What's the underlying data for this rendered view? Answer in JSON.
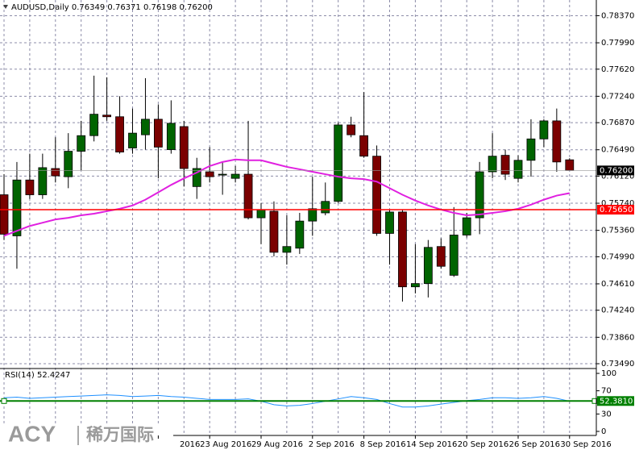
{
  "chart_data": [
    {
      "type": "candlestick",
      "title": "AUDUSD,Daily  0.76349 0.76371 0.76198 0.76200",
      "categories": [
        null,
        null,
        null,
        null,
        null,
        null,
        null,
        null,
        null,
        null,
        null,
        null,
        "2016",
        null,
        null,
        null,
        "23 Aug 2016",
        null,
        null,
        null,
        "29 Aug 2016",
        null,
        null,
        null,
        "2 Sep 2016",
        null,
        null,
        null,
        "8 Sep 2016",
        null,
        null,
        null,
        "14 Sep 2016",
        null,
        null,
        null,
        "20 Sep 2016",
        null,
        null,
        null,
        "26 Sep 2016",
        null,
        null,
        null,
        "30 Sep 2016"
      ],
      "open": [
        0.75859,
        0.75283,
        0.76066,
        0.75859,
        0.76227,
        0.76112,
        0.76469,
        0.76688,
        0.76976,
        0.76953,
        0.76515,
        0.767,
        0.76918,
        0.76492,
        0.76815,
        0.75974,
        0.76181,
        0.76135,
        0.76089,
        0.76147,
        0.75536,
        0.75628,
        0.75052,
        0.7511,
        0.7549,
        0.75605,
        0.75766,
        0.76838,
        0.76688,
        0.764,
        0.75317,
        0.75617,
        0.74568,
        0.74614,
        0.75133,
        0.7473,
        0.75294,
        0.75536,
        0.76181,
        0.76412,
        0.76089,
        0.76342,
        0.76642,
        0.76895,
        0.76349
      ],
      "high": [
        0.76147,
        0.76319,
        0.76435,
        0.76435,
        0.76665,
        0.76723,
        0.76895,
        0.77529,
        0.77506,
        0.77241,
        0.77068,
        0.77494,
        0.77126,
        0.77183,
        0.76895,
        0.76377,
        0.76527,
        0.76319,
        0.76262,
        0.76895,
        0.75743,
        0.75766,
        0.75571,
        0.75605,
        0.76112,
        0.76031,
        0.76872,
        0.76953,
        0.77299,
        0.7655,
        0.75651,
        0.75651,
        0.75167,
        0.75225,
        0.75248,
        0.75686,
        0.75605,
        0.76319,
        0.76723,
        0.76492,
        0.76412,
        0.76918,
        0.76918,
        0.77068,
        0.76371
      ],
      "low": [
        0.75225,
        0.74822,
        0.75801,
        0.75801,
        0.76031,
        0.75951,
        0.76204,
        0.76607,
        0.76895,
        0.76435,
        0.76435,
        0.76492,
        0.76089,
        0.76435,
        0.75974,
        0.75801,
        0.76031,
        0.75859,
        0.76031,
        0.75513,
        0.75167,
        0.74995,
        0.74879,
        0.75029,
        0.75283,
        0.75571,
        0.75743,
        0.76665,
        0.76377,
        0.75283,
        0.74879,
        0.74361,
        0.74476,
        0.74419,
        0.74822,
        0.74707,
        0.7526,
        0.75306,
        0.76089,
        0.76066,
        0.76031,
        0.76112,
        0.76527,
        0.76181,
        0.76198
      ],
      "close": [
        0.75306,
        0.76066,
        0.75859,
        0.76239,
        0.76124,
        0.76469,
        0.76688,
        0.76988,
        0.76953,
        0.76458,
        0.76723,
        0.76918,
        0.76527,
        0.76861,
        0.76227,
        0.76227,
        0.76112,
        0.76147,
        0.76147,
        0.75536,
        0.75651,
        0.75052,
        0.75133,
        0.7549,
        0.75663,
        0.75766,
        0.76838,
        0.767,
        0.764,
        0.75317,
        0.75617,
        0.74568,
        0.74614,
        0.75121,
        0.74856,
        0.75294,
        0.75536,
        0.76181,
        0.764,
        0.76147,
        0.76342,
        0.76642,
        0.76895,
        0.76319,
        0.762
      ],
      "up_color": "#006400",
      "down_color": "#7b0000",
      "ma": {
        "color": "#e020e0",
        "values": [
          0.75283,
          0.75352,
          0.75421,
          0.75467,
          0.75513,
          0.75536,
          0.75571,
          0.75594,
          0.75628,
          0.75663,
          0.75709,
          0.7579,
          0.75893,
          0.75997,
          0.76089,
          0.7617,
          0.76262,
          0.76319,
          0.76354,
          0.76342,
          0.76342,
          0.76296,
          0.7625,
          0.76216,
          0.76181,
          0.76147,
          0.76112,
          0.76089,
          0.76078,
          0.76043,
          0.75951,
          0.75859,
          0.75778,
          0.75709,
          0.75651,
          0.75605,
          0.75571,
          0.75582,
          0.75605,
          0.75628,
          0.75663,
          0.7572,
          0.7579,
          0.75847,
          0.75882
        ]
      },
      "ylim": [
        0.73445,
        0.7859
      ],
      "yticks": [
        {
          "value": 0.7837,
          "label": "0.78370"
        },
        {
          "value": 0.7799,
          "label": "0.77990"
        },
        {
          "value": 0.7762,
          "label": "0.77620"
        },
        {
          "value": 0.7724,
          "label": "0.77240"
        },
        {
          "value": 0.7687,
          "label": "0.76870"
        },
        {
          "value": 0.7649,
          "label": "0.76490"
        },
        {
          "value": 0.7612,
          "label": "0.76120"
        },
        {
          "value": 0.7574,
          "label": "0.75740"
        },
        {
          "value": 0.7536,
          "label": "0.75360"
        },
        {
          "value": 0.7499,
          "label": "0.74990"
        },
        {
          "value": 0.7461,
          "label": "0.74610"
        },
        {
          "value": 0.7424,
          "label": "0.74240"
        },
        {
          "value": 0.7386,
          "label": "0.73860"
        },
        {
          "value": 0.7349,
          "label": "0.73490"
        }
      ],
      "grid": true,
      "price_line": {
        "value": 0.762,
        "label": "0.76200"
      },
      "level_line": {
        "value": 0.7565,
        "label": "0.75650",
        "color": "#ff0000"
      }
    },
    {
      "type": "line",
      "title": "RSI(14) 52.4247",
      "color": "#1e90ff",
      "values": [
        58,
        59,
        57,
        58,
        59,
        60,
        61,
        62,
        63,
        62,
        60,
        61,
        62,
        60,
        59,
        57,
        55,
        55,
        55,
        56,
        52,
        46,
        44,
        45,
        48,
        52,
        56,
        60,
        58,
        55,
        48,
        42,
        42,
        44,
        47,
        50,
        53,
        55,
        58,
        58,
        57,
        58,
        60,
        57,
        52
      ],
      "ylim": [
        -7,
        107
      ],
      "yticks": [
        100,
        70,
        30,
        0
      ],
      "level_line": {
        "value": 52.381,
        "label": "52.3810",
        "color": "#008000"
      }
    }
  ],
  "watermark": {
    "brand": "ACY",
    "name": "稀万国际"
  }
}
